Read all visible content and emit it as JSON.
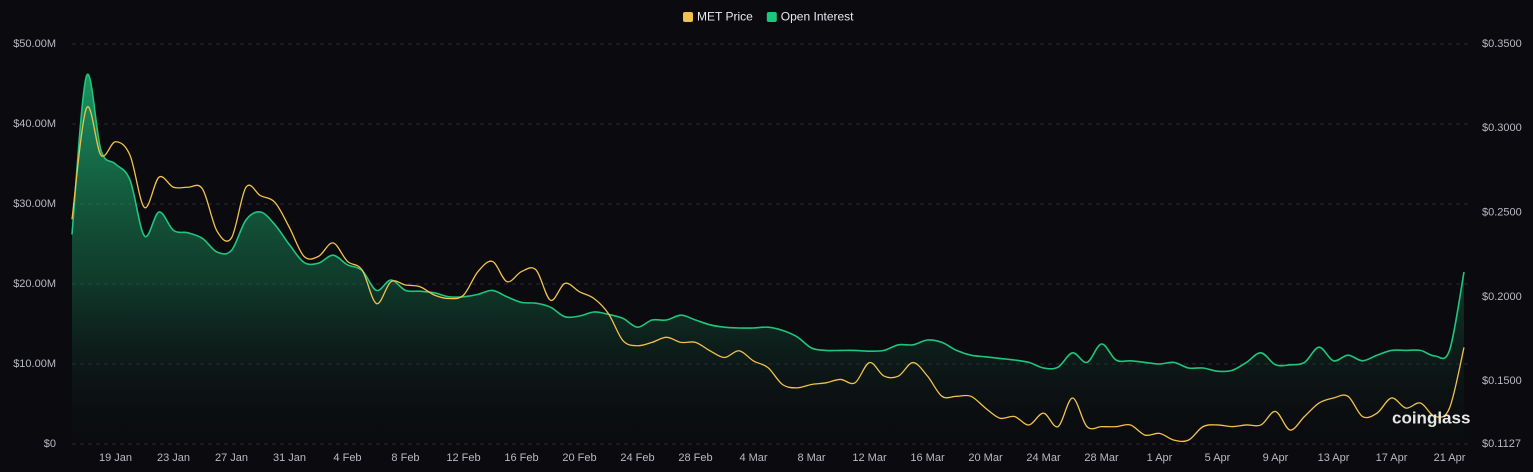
{
  "chart_data": {
    "type": "area-line",
    "watermark": "coinglass",
    "categories": [
      null,
      null,
      null,
      "19 Jan",
      null,
      null,
      null,
      "23 Jan",
      null,
      null,
      null,
      "27 Jan",
      null,
      null,
      null,
      "31 Jan",
      null,
      null,
      null,
      "4 Feb",
      null,
      null,
      null,
      "8 Feb",
      null,
      null,
      null,
      "12 Feb",
      null,
      null,
      null,
      "16 Feb",
      null,
      null,
      null,
      "20 Feb",
      null,
      null,
      null,
      "24 Feb",
      null,
      null,
      null,
      "28 Feb",
      null,
      null,
      null,
      "4 Mar",
      null,
      null,
      null,
      "8 Mar",
      null,
      null,
      null,
      "12 Mar",
      null,
      null,
      null,
      "16 Mar",
      null,
      null,
      null,
      "20 Mar",
      null,
      null,
      null,
      "24 Mar",
      null,
      null,
      null,
      "28 Mar",
      null,
      null,
      null,
      "1 Apr",
      null,
      null,
      null,
      "5 Apr",
      null,
      null,
      null,
      "9 Apr",
      null,
      null,
      null,
      "13 Apr",
      null,
      null,
      null,
      "17 Apr",
      null,
      null,
      null,
      "21 Apr",
      null
    ],
    "series": [
      {
        "name": "MET Price",
        "color": "#f0c14b",
        "axis": "y2",
        "values": [
          0.246,
          0.312,
          0.284,
          0.292,
          0.284,
          0.253,
          0.271,
          0.265,
          0.265,
          0.264,
          0.239,
          0.235,
          0.265,
          0.26,
          0.256,
          0.241,
          0.224,
          0.224,
          0.232,
          0.221,
          0.216,
          0.196,
          0.209,
          0.207,
          0.206,
          0.201,
          0.199,
          0.201,
          0.215,
          0.221,
          0.209,
          0.215,
          0.216,
          0.198,
          0.208,
          0.203,
          0.199,
          0.19,
          0.174,
          0.171,
          0.173,
          0.176,
          0.173,
          0.173,
          0.168,
          0.164,
          0.168,
          0.162,
          0.158,
          0.148,
          0.146,
          0.148,
          0.149,
          0.151,
          0.149,
          0.161,
          0.153,
          0.153,
          0.161,
          0.153,
          0.141,
          0.141,
          0.141,
          0.134,
          0.128,
          0.129,
          0.124,
          0.131,
          0.123,
          0.14,
          0.123,
          0.123,
          0.123,
          0.124,
          0.118,
          0.119,
          0.115,
          0.115,
          0.123,
          0.124,
          0.123,
          0.124,
          0.124,
          0.132,
          0.121,
          0.129,
          0.137,
          0.14,
          0.141,
          0.129,
          0.131,
          0.14,
          0.134,
          0.137,
          0.129,
          0.134,
          0.17
        ]
      },
      {
        "name": "Open Interest",
        "color": "#1fc47d",
        "values": [
          26200000,
          46000000,
          36700000,
          35000000,
          33000000,
          26000000,
          29000000,
          26700000,
          26400000,
          25700000,
          24000000,
          24200000,
          28000000,
          29000000,
          27400000,
          24900000,
          22700000,
          22600000,
          23600000,
          22400000,
          21700000,
          19200000,
          20500000,
          19200000,
          19100000,
          18900000,
          18400000,
          18400000,
          18700000,
          19200000,
          18400000,
          17700000,
          17600000,
          17100000,
          15900000,
          16000000,
          16500000,
          16200000,
          15700000,
          14600000,
          15500000,
          15500000,
          16100000,
          15500000,
          14900000,
          14600000,
          14500000,
          14500000,
          14600000,
          14200000,
          13400000,
          12000000,
          11700000,
          11700000,
          11700000,
          11600000,
          11700000,
          12400000,
          12400000,
          13000000,
          12700000,
          11700000,
          11100000,
          10900000,
          10700000,
          10500000,
          10200000,
          9500000,
          9600000,
          11400000,
          10200000,
          12500000,
          10500000,
          10400000,
          10200000,
          10000000,
          10200000,
          9500000,
          9500000,
          9100000,
          9200000,
          10200000,
          11400000,
          9900000,
          9900000,
          10200000,
          12100000,
          10400000,
          11100000,
          10400000,
          11100000,
          11700000,
          11700000,
          11700000,
          11000000,
          11700000,
          21500000
        ]
      }
    ],
    "ylim": [
      0,
      50000000
    ],
    "yticks": [
      {
        "value": 0,
        "label": "$0"
      },
      {
        "value": 10000000,
        "label": "$10.00M"
      },
      {
        "value": 20000000,
        "label": "$20.00M"
      },
      {
        "value": 30000000,
        "label": "$30.00M"
      },
      {
        "value": 40000000,
        "label": "$40.00M"
      },
      {
        "value": 50000000,
        "label": "$50.00M"
      }
    ],
    "y2lim": [
      0.1127,
      0.35
    ],
    "y2ticks": [
      {
        "value": 0.1127,
        "label": "$0.1127"
      },
      {
        "value": 0.15,
        "label": "$0.1500"
      },
      {
        "value": 0.2,
        "label": "$0.2000"
      },
      {
        "value": 0.25,
        "label": "$0.2500"
      },
      {
        "value": 0.3,
        "label": "$0.3000"
      },
      {
        "value": 0.35,
        "label": "$0.3500"
      }
    ],
    "grid": true,
    "legend": "top"
  }
}
